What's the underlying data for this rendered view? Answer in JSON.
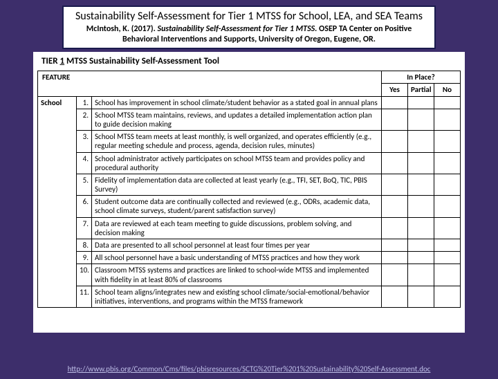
{
  "header": {
    "title": "Sustainability Self-Assessment for Tier 1 MTSS for School, LEA, and SEA Teams",
    "citation_author": "McIntosh, K. (2017). ",
    "citation_italic": "Sustainability Self-Assessment for Tier 1 MTSS.",
    "citation_rest": " OSEP TA Center on Positive Behavioral Interventions and Supports, University of Oregon, Eugene, OR."
  },
  "tool": {
    "prefix": "TIER ",
    "underline": "1",
    "suffix": " MTSS Sustainability Self-Assessment Tool"
  },
  "columns": {
    "feature": "FEATURE",
    "inplace": "In Place?",
    "yes": "Yes",
    "partial": "Partial",
    "no": "No"
  },
  "level_label": "School",
  "rows": [
    {
      "n": "1.",
      "text": "School has improvement in school climate/student behavior as a stated goal in annual plans"
    },
    {
      "n": "2.",
      "text": "School MTSS team maintains, reviews, and updates a detailed implementation action plan to guide decision making"
    },
    {
      "n": "3.",
      "text": "School MTSS team meets at least monthly, is well organized, and operates efficiently (e.g., regular meeting schedule and process, agenda, decision rules, minutes)"
    },
    {
      "n": "4.",
      "text": "School administrator actively participates on school MTSS team and provides policy and procedural authority"
    },
    {
      "n": "5.",
      "text": "Fidelity of implementation data are collected at least yearly (e.g., TFI, SET, BoQ, TIC, PBIS Survey)"
    },
    {
      "n": "6.",
      "text": "Student outcome data are continually collected and reviewed (e.g., ODRs, academic data, school climate surveys, student/parent satisfaction survey)"
    },
    {
      "n": "7.",
      "text": "Data are reviewed at each team meeting to guide discussions, problem solving, and decision making"
    },
    {
      "n": "8.",
      "text": "Data are presented to all school personnel at least four times per year"
    },
    {
      "n": "9.",
      "text": "All school personnel have a basic understanding of MTSS practices and how they work"
    },
    {
      "n": "10.",
      "text": "Classroom MTSS systems and practices are linked to school-wide MTSS and implemented with fidelity in at least 80% of classrooms"
    },
    {
      "n": "11.",
      "text": "School team aligns/integrates new and existing school climate/social-emotional/behavior initiatives, interventions, and programs within the MTSS framework"
    }
  ],
  "footer": {
    "url": "http://www.pbis.org/Common/Cms/files/pbisresources/SCTG%20Tier%201%20Sustainability%20Self-Assessment.doc"
  }
}
